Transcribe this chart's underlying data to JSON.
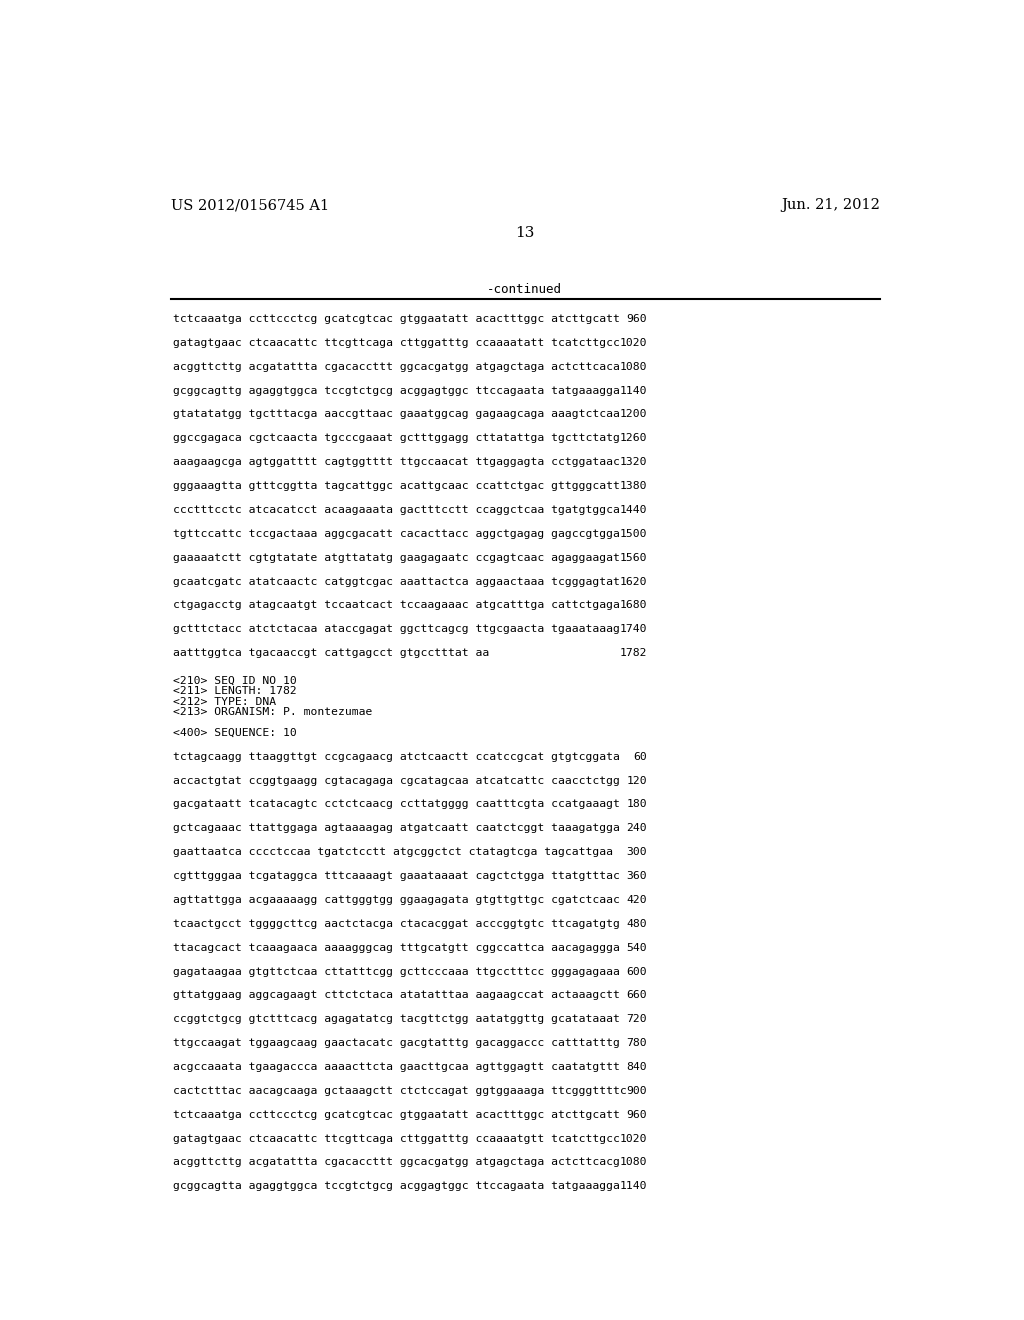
{
  "header_left": "US 2012/0156745 A1",
  "header_right": "Jun. 21, 2012",
  "page_number": "13",
  "continued_label": "-continued",
  "background_color": "#ffffff",
  "text_color": "#000000",
  "sequence_lines_top": [
    [
      "tctcaaatga ccttccctcg gcatcgtcac gtggaatatt acactttggc atcttgcatt",
      "960"
    ],
    [
      "gatagtgaac ctcaacattc ttcgttcaga cttggatttg ccaaaatatt tcatcttgcc",
      "1020"
    ],
    [
      "acggttcttg acgatattta cgacaccttt ggcacgatgg atgagctaga actcttcaca",
      "1080"
    ],
    [
      "gcggcagttg agaggtggca tccgtctgcg acggagtggc ttccagaata tatgaaagga",
      "1140"
    ],
    [
      "gtatatatgg tgctttacga aaccgttaac gaaatggcag gagaagcaga aaagtctcaa",
      "1200"
    ],
    [
      "ggccgagaca cgctcaacta tgcccgaaat gctttggagg cttatattga tgcttctatg",
      "1260"
    ],
    [
      "aaagaagcga agtggatttt cagtggtttt ttgccaacat ttgaggagta cctggataac",
      "1320"
    ],
    [
      "gggaaagtta gtttcggtta tagcattggc acattgcaac ccattctgac gttgggcatt",
      "1380"
    ],
    [
      "ccctttcctc atcacatcct acaagaaata gactttcctt ccaggctcaa tgatgtggca",
      "1440"
    ],
    [
      "tgttccattc tccgactaaa aggcgacatt cacacttacc aggctgagag gagccgtgga",
      "1500"
    ],
    [
      "gaaaaatctt cgtgtatate atgttatatg gaagagaatc ccgagtcaac agaggaagat",
      "1560"
    ],
    [
      "gcaatcgatc atatcaactc catggtcgac aaattactca aggaactaaa tcgggagtat",
      "1620"
    ],
    [
      "ctgagacctg atagcaatgt tccaatcact tccaagaaac atgcatttga cattctgaga",
      "1680"
    ],
    [
      "gctttctacc atctctacaa ataccgagat ggcttcagcg ttgcgaacta tgaaataaag",
      "1740"
    ],
    [
      "aatttggtca tgacaaccgt cattgagcct gtgcctttat aa",
      "1782"
    ]
  ],
  "metadata_lines": [
    "<210> SEQ ID NO 10",
    "<211> LENGTH: 1782",
    "<212> TYPE: DNA",
    "<213> ORGANISM: P. montezumae"
  ],
  "sequence_header": "<400> SEQUENCE: 10",
  "sequence_lines_bottom": [
    [
      "tctagcaagg ttaaggttgt ccgcagaacg atctcaactt ccatccgcat gtgtcggata",
      "60"
    ],
    [
      "accactgtat ccggtgaagg cgtacagaga cgcatagcaa atcatcattc caacctctgg",
      "120"
    ],
    [
      "gacgataatt tcatacagtc cctctcaacg ccttatgggg caatttcgta ccatgaaagt",
      "180"
    ],
    [
      "gctcagaaac ttattggaga agtaaaagag atgatcaatt caatctcggt taaagatgga",
      "240"
    ],
    [
      "gaattaatca cccctccaa tgatctcctt atgcggctct ctatagtcga tagcattgaa",
      "300"
    ],
    [
      "cgtttgggaa tcgataggca tttcaaaagt gaaataaaat cagctctgga ttatgtttac",
      "360"
    ],
    [
      "agttattgga acgaaaaagg cattgggtgg ggaagagata gtgttgttgc cgatctcaac",
      "420"
    ],
    [
      "tcaactgcct tggggcttcg aactctacga ctacacggat acccggtgtc ttcagatgtg",
      "480"
    ],
    [
      "ttacagcact tcaaagaaca aaaagggcag tttgcatgtt cggccattca aacagaggga",
      "540"
    ],
    [
      "gagataagaa gtgttctcaa cttatttcgg gcttcccaaa ttgcctttcc gggagagaaa",
      "600"
    ],
    [
      "gttatggaag aggcagaagt cttctctaca atatatttaa aagaagccat actaaagctt",
      "660"
    ],
    [
      "ccggtctgcg gtctttcacg agagatatcg tacgttctgg aatatggttg gcatataaat",
      "720"
    ],
    [
      "ttgccaagat tggaagcaag gaactacatc gacgtatttg gacaggaccc catttatttg",
      "780"
    ],
    [
      "acgccaaata tgaagaccca aaaacttcta gaacttgcaa agttggagtt caatatgttt",
      "840"
    ],
    [
      "cactctttac aacagcaaga gctaaagctt ctctccagat ggtggaaaga ttcgggttttc",
      "900"
    ],
    [
      "tctcaaatga ccttccctcg gcatcgtcac gtggaatatt acactttggc atcttgcatt",
      "960"
    ],
    [
      "gatagtgaac ctcaacattc ttcgttcaga cttggatttg ccaaaatgtt tcatcttgcc",
      "1020"
    ],
    [
      "acggttcttg acgatattta cgacaccttt ggcacgatgg atgagctaga actcttcacg",
      "1080"
    ],
    [
      "gcggcagtta agaggtggca tccgtctgcg acggagtggc ttccagaata tatgaaagga",
      "1140"
    ]
  ]
}
